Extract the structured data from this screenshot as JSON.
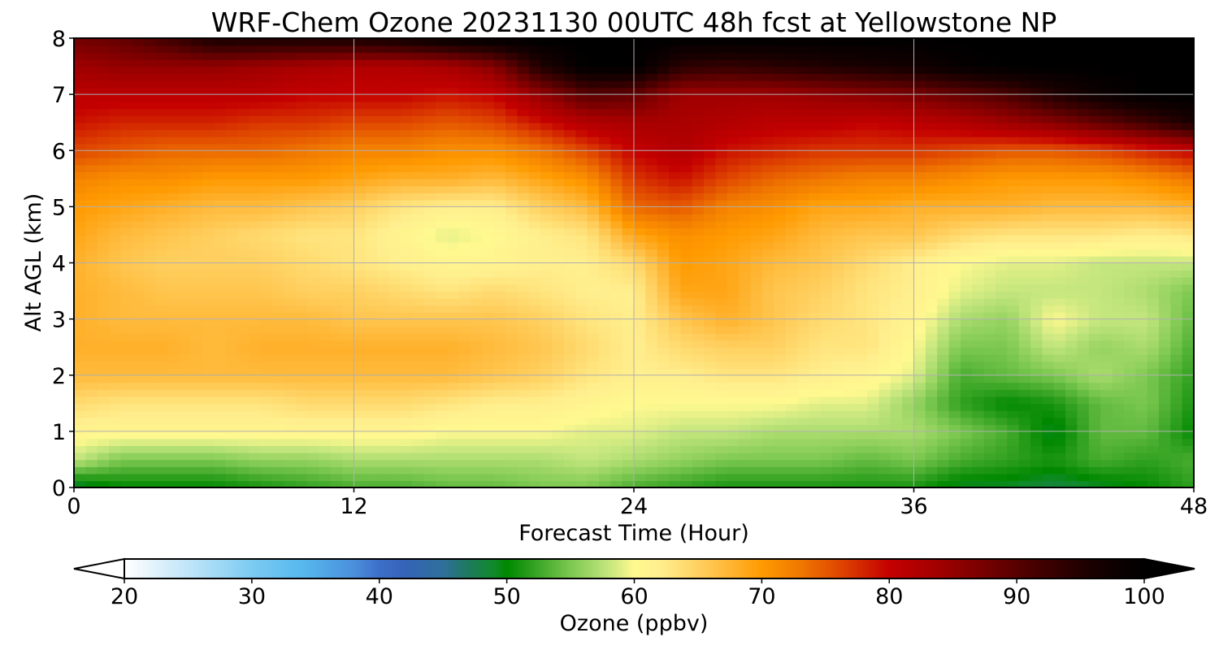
{
  "chart_data": {
    "type": "heatmap",
    "title": "WRF-Chem Ozone  20231130 00UTC 48h fcst at Yellowstone NP",
    "xlabel": "Forecast Time (Hour)",
    "ylabel": "Alt AGL (km)",
    "xlim": [
      0,
      48
    ],
    "ylim": [
      0,
      8
    ],
    "x_ticks": [
      0,
      12,
      24,
      36,
      48
    ],
    "y_ticks": [
      0,
      1,
      2,
      3,
      4,
      5,
      6,
      7,
      8
    ],
    "grid": true,
    "x_hours": [
      0,
      2,
      4,
      6,
      8,
      10,
      12,
      14,
      16,
      18,
      20,
      22,
      24,
      26,
      28,
      30,
      32,
      34,
      36,
      38,
      40,
      42,
      44,
      46,
      48
    ],
    "y_km": [
      0,
      0.5,
      1,
      1.5,
      2,
      2.5,
      3,
      3.5,
      4,
      4.5,
      5,
      5.5,
      6,
      6.5,
      7,
      7.5,
      8
    ],
    "values_ppbv": [
      [
        48,
        50,
        50,
        50,
        51,
        52,
        53,
        53,
        54,
        54,
        55,
        55,
        53,
        52,
        51,
        51,
        51,
        51,
        51,
        49,
        49,
        48,
        49,
        50,
        52
      ],
      [
        58,
        55,
        55,
        55,
        56,
        56,
        57,
        57,
        57,
        57,
        57,
        58,
        57,
        56,
        55,
        55,
        55,
        54,
        55,
        53,
        52,
        51,
        53,
        52,
        53
      ],
      [
        61,
        61,
        61,
        61,
        61,
        61,
        61,
        61,
        60,
        60,
        60,
        59,
        59,
        58,
        58,
        57,
        57,
        57,
        57,
        55,
        53,
        49,
        54,
        54,
        50
      ],
      [
        64,
        63,
        63,
        63,
        63,
        64,
        64,
        64,
        63,
        62,
        62,
        61,
        60,
        60,
        60,
        60,
        59,
        59,
        56,
        52,
        50,
        51,
        54,
        55,
        51
      ],
      [
        67,
        67,
        67,
        67,
        67,
        67,
        67,
        67,
        67,
        66,
        65,
        63,
        62,
        62,
        63,
        63,
        62,
        61,
        59,
        53,
        54,
        55,
        57,
        55,
        52
      ],
      [
        68,
        68,
        68,
        67,
        68,
        68,
        68,
        68,
        68,
        67,
        66,
        64,
        62,
        64,
        65,
        65,
        63,
        63,
        60,
        55,
        55,
        58,
        56,
        57,
        53
      ],
      [
        68,
        67,
        67,
        67,
        67,
        67,
        66,
        66,
        66,
        66,
        65,
        63,
        62,
        66,
        68,
        66,
        64,
        63,
        61,
        57,
        56,
        60,
        58,
        58,
        54
      ],
      [
        68,
        67,
        66,
        66,
        66,
        65,
        65,
        64,
        63,
        64,
        63,
        62,
        62,
        69,
        69,
        66,
        65,
        63,
        62,
        59,
        58,
        58,
        58,
        57,
        55
      ],
      [
        68,
        66,
        65,
        65,
        65,
        64,
        63,
        62,
        61,
        61,
        62,
        62,
        64,
        70,
        69,
        67,
        66,
        64,
        62,
        60,
        59,
        59,
        58,
        58,
        58
      ],
      [
        69,
        67,
        66,
        65,
        64,
        63,
        63,
        61,
        59,
        60,
        62,
        63,
        69,
        71,
        70,
        69,
        67,
        66,
        66,
        64,
        63,
        63,
        63,
        62,
        63
      ],
      [
        70,
        69,
        68,
        67,
        67,
        66,
        65,
        63,
        62,
        62,
        65,
        67,
        74,
        75,
        72,
        71,
        69,
        69,
        68,
        68,
        68,
        67,
        67,
        67,
        68
      ],
      [
        72,
        71,
        71,
        70,
        70,
        70,
        69,
        68,
        68,
        67,
        69,
        71,
        77,
        79,
        76,
        74,
        73,
        72,
        72,
        71,
        70,
        70,
        70,
        71,
        73
      ],
      [
        76,
        75,
        74,
        74,
        74,
        73,
        72,
        72,
        71,
        71,
        73,
        76,
        80,
        82,
        79,
        78,
        77,
        77,
        77,
        76,
        75,
        75,
        76,
        78,
        80
      ],
      [
        79,
        78,
        78,
        78,
        77,
        77,
        76,
        76,
        75,
        76,
        79,
        82,
        83,
        83,
        82,
        81,
        81,
        80,
        81,
        82,
        84,
        86,
        89,
        92,
        96
      ],
      [
        81,
        81,
        81,
        81,
        81,
        80,
        80,
        80,
        79,
        80,
        85,
        90,
        89,
        84,
        84,
        84,
        85,
        86,
        87,
        89,
        91,
        95,
        98,
        100,
        100
      ],
      [
        84,
        85,
        85,
        85,
        84,
        83,
        82,
        82,
        83,
        86,
        95,
        100,
        100,
        94,
        93,
        94,
        95,
        96,
        97,
        99,
        100,
        100,
        100,
        100,
        100
      ],
      [
        88,
        89,
        92,
        96,
        96,
        96,
        96,
        97,
        99,
        100,
        100,
        100,
        100,
        100,
        100,
        100,
        100,
        100,
        100,
        100,
        100,
        100,
        100,
        100,
        100
      ]
    ],
    "colorbar": {
      "label": "Ozone  (ppbv)",
      "min": 20,
      "max": 100,
      "ticks": [
        20,
        30,
        40,
        50,
        60,
        70,
        80,
        90,
        100
      ],
      "extend": "both",
      "stops": [
        {
          "v": 20,
          "c": "#ffffff"
        },
        {
          "v": 22,
          "c": "#e6f4fc"
        },
        {
          "v": 26,
          "c": "#b3e0f7"
        },
        {
          "v": 30,
          "c": "#7ccbf2"
        },
        {
          "v": 34,
          "c": "#56b8ee"
        },
        {
          "v": 38,
          "c": "#4b8fdc"
        },
        {
          "v": 40,
          "c": "#3d6fc8"
        },
        {
          "v": 42,
          "c": "#3563b8"
        },
        {
          "v": 45,
          "c": "#2e6f9a"
        },
        {
          "v": 47,
          "c": "#1e7a5c"
        },
        {
          "v": 49,
          "c": "#0f8a2a"
        },
        {
          "v": 50,
          "c": "#008800"
        },
        {
          "v": 52,
          "c": "#30a020"
        },
        {
          "v": 55,
          "c": "#7cc850"
        },
        {
          "v": 58,
          "c": "#c4e67e"
        },
        {
          "v": 60,
          "c": "#fff98f"
        },
        {
          "v": 62,
          "c": "#ffef8e"
        },
        {
          "v": 65,
          "c": "#ffd060"
        },
        {
          "v": 68,
          "c": "#ffb02a"
        },
        {
          "v": 70,
          "c": "#ff9a00"
        },
        {
          "v": 73,
          "c": "#f07800"
        },
        {
          "v": 76,
          "c": "#e04800"
        },
        {
          "v": 80,
          "c": "#c40000"
        },
        {
          "v": 84,
          "c": "#a00000"
        },
        {
          "v": 88,
          "c": "#700000"
        },
        {
          "v": 92,
          "c": "#400000"
        },
        {
          "v": 96,
          "c": "#180000"
        },
        {
          "v": 100,
          "c": "#000000"
        }
      ]
    }
  }
}
